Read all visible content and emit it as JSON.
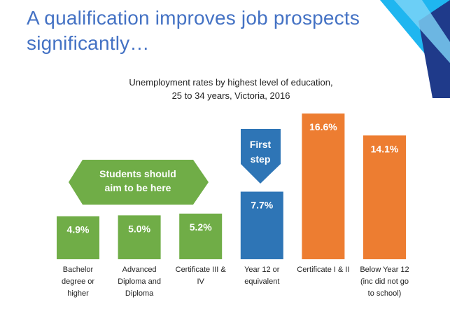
{
  "slide": {
    "headline_line1": "A qualification improves job prospects",
    "headline_line2": "significantly…",
    "subtitle_line1": "Unemployment rates by highest level of education,",
    "subtitle_line2": "25 to 34 years, Victoria, 2016"
  },
  "callouts": {
    "hexagon_line1": "Students should",
    "hexagon_line2": "aim to be here",
    "arrow_line1": "First",
    "arrow_line2": "step"
  },
  "colors": {
    "green": "#70ad47",
    "blue": "#2e75b6",
    "orange": "#ed7d31",
    "headline": "#4472c4",
    "accent_cyan": "#1fb6f0",
    "accent_navy": "#1f3a8a"
  },
  "chart_data": {
    "type": "bar",
    "title": "Unemployment rates by highest level of education, 25 to 34 years, Victoria, 2016",
    "categories": [
      [
        "Bachelor",
        "degree or",
        "higher"
      ],
      [
        "Advanced",
        "Diploma and",
        "Diploma"
      ],
      [
        "Certificate III &",
        "IV"
      ],
      [
        "Year 12 or",
        "equivalent"
      ],
      [
        "Certificate I & II"
      ],
      [
        "Below Year 12",
        "(inc did not go",
        "to school)"
      ]
    ],
    "values": [
      4.9,
      5.0,
      5.2,
      7.7,
      16.6,
      14.1
    ],
    "value_labels": [
      "4.9%",
      "5.0%",
      "5.2%",
      "7.7%",
      "16.6%",
      "14.1%"
    ],
    "bar_colors": [
      "#70ad47",
      "#70ad47",
      "#70ad47",
      "#2e75b6",
      "#ed7d31",
      "#ed7d31"
    ],
    "ylim": [
      0,
      16.6
    ],
    "grid": false
  }
}
